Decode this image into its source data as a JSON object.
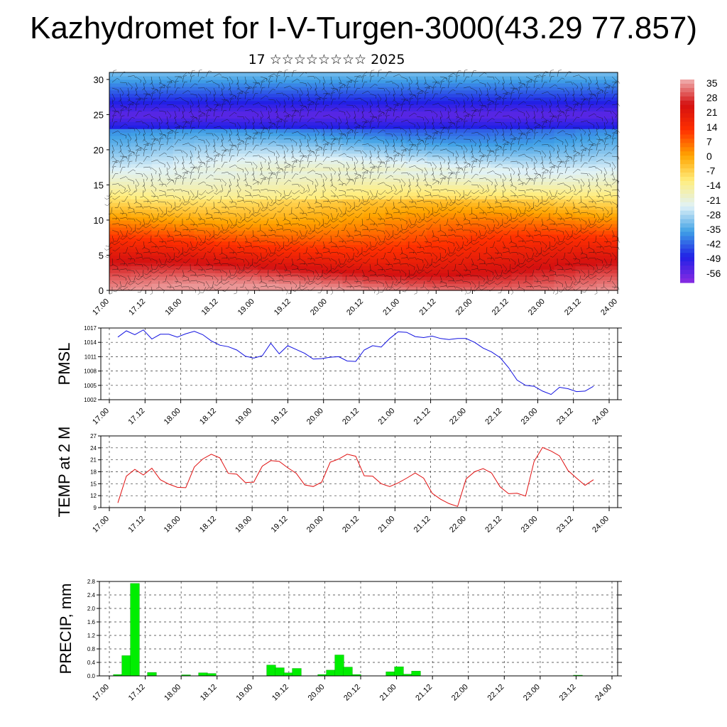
{
  "title": "Kazhydromet for I-V-Turgen-3000(43.29 77.857)",
  "subtitle": "17 ☆☆☆☆☆☆☆☆ 2025",
  "x_ticks": [
    "17.00",
    "17.12",
    "18.00",
    "18.12",
    "19.00",
    "19.12",
    "20.00",
    "20.12",
    "21.00",
    "21.12",
    "22.00",
    "22.12",
    "23.00",
    "23.12",
    "24.00"
  ],
  "colorbar_labels": [
    "35",
    "28",
    "21",
    "14",
    "7",
    "0",
    "-7",
    "-14",
    "-21",
    "-28",
    "-35",
    "-42",
    "-49",
    "-56"
  ],
  "chart_data": [
    {
      "type": "heatmap",
      "y_ticks": [
        "0",
        "5",
        "10",
        "15",
        "20",
        "25",
        "30"
      ],
      "ylim": [
        0,
        31
      ],
      "color_scale": {
        "min": -60,
        "max": 38,
        "stops": [
          "#8a2be2",
          "#2020e6",
          "#3fa0e6",
          "#e0f2f7",
          "#ffee80",
          "#ffa500",
          "#ff3000",
          "#d41010",
          "#f0b0b0"
        ]
      },
      "notes": "temperature shading by level with wind barbs"
    },
    {
      "type": "line",
      "ylabel": "PMSL",
      "y_ticks": [
        "1002",
        "1005",
        "1008",
        "1011",
        "1014",
        "1017"
      ],
      "ylim": [
        1002,
        1017
      ],
      "color": "#1010e0",
      "series": [
        {
          "values": [
            1015.1,
            1016.4,
            1015.6,
            1016.6,
            1014.7,
            1015.7,
            1015.7,
            1015.1,
            1015.8,
            1016.3,
            1015.6,
            1014.3,
            1013.4,
            1013.1,
            1012.4,
            1011.1,
            1010.7,
            1011.2,
            1013.8,
            1011.6,
            1013.3,
            1012.5,
            1011.7,
            1010.5,
            1010.6,
            1010.9,
            1011.0,
            1010.1,
            1010.0,
            1012.4,
            1013.3,
            1013.0,
            1014.8,
            1016.2,
            1016.1,
            1015.2,
            1015.0,
            1015.3,
            1014.8,
            1014.6,
            1014.8,
            1014.8,
            1014.0,
            1012.8,
            1012.0,
            1010.8,
            1008.7,
            1006.1,
            1005.0,
            1004.8,
            1003.8,
            1003.1,
            1004.6,
            1004.3,
            1003.7,
            1003.8,
            1004.8
          ]
        }
      ]
    },
    {
      "type": "line",
      "ylabel": "TEMP at 2 M",
      "y_ticks": [
        "9",
        "12",
        "15",
        "18",
        "21",
        "24",
        "27"
      ],
      "ylim": [
        9,
        27
      ],
      "color": "#e01010",
      "series": [
        {
          "values": [
            10.2,
            16.9,
            18.6,
            17.2,
            18.9,
            16.0,
            14.9,
            14.1,
            14.0,
            19.2,
            21.2,
            22.4,
            21.5,
            17.6,
            17.4,
            15.3,
            15.4,
            19.4,
            20.8,
            20.6,
            19.0,
            17.6,
            14.7,
            14.3,
            15.4,
            20.4,
            21.2,
            22.4,
            21.9,
            17.0,
            16.9,
            15.0,
            14.3,
            15.2,
            16.4,
            17.7,
            16.4,
            12.6,
            11.1,
            10.0,
            9.3,
            16.2,
            18.0,
            18.8,
            17.7,
            14.2,
            12.5,
            12.6,
            11.9,
            20.6,
            24.1,
            23.2,
            22.0,
            18.3,
            16.4,
            14.6,
            16.0
          ]
        }
      ]
    },
    {
      "type": "bar",
      "ylabel": "PRECIP, mm",
      "y_ticks": [
        "0.0",
        "0.4",
        "0.8",
        "1.2",
        "1.6",
        "2.0",
        "2.4",
        "2.8"
      ],
      "ylim": [
        0,
        2.8
      ],
      "color": "#00ee00",
      "values": [
        0.04,
        0.6,
        2.74,
        0.0,
        0.1,
        0.0,
        0.0,
        0.0,
        0.03,
        0.0,
        0.09,
        0.07,
        0.0,
        0.0,
        0.0,
        0.0,
        0.0,
        0.0,
        0.32,
        0.24,
        0.09,
        0.22,
        0.0,
        0.0,
        0.04,
        0.17,
        0.62,
        0.26,
        0.04,
        0.0,
        0.0,
        0.0,
        0.12,
        0.27,
        0.05,
        0.14,
        0.0,
        0.0,
        0.0,
        0.0,
        0.0,
        0.0,
        0.0,
        0.0,
        0.0,
        0.0,
        0.0,
        0.0,
        0.0,
        0.0,
        0.0,
        0.0,
        0.0,
        0.0,
        0.02,
        0.0,
        0.0
      ]
    }
  ]
}
